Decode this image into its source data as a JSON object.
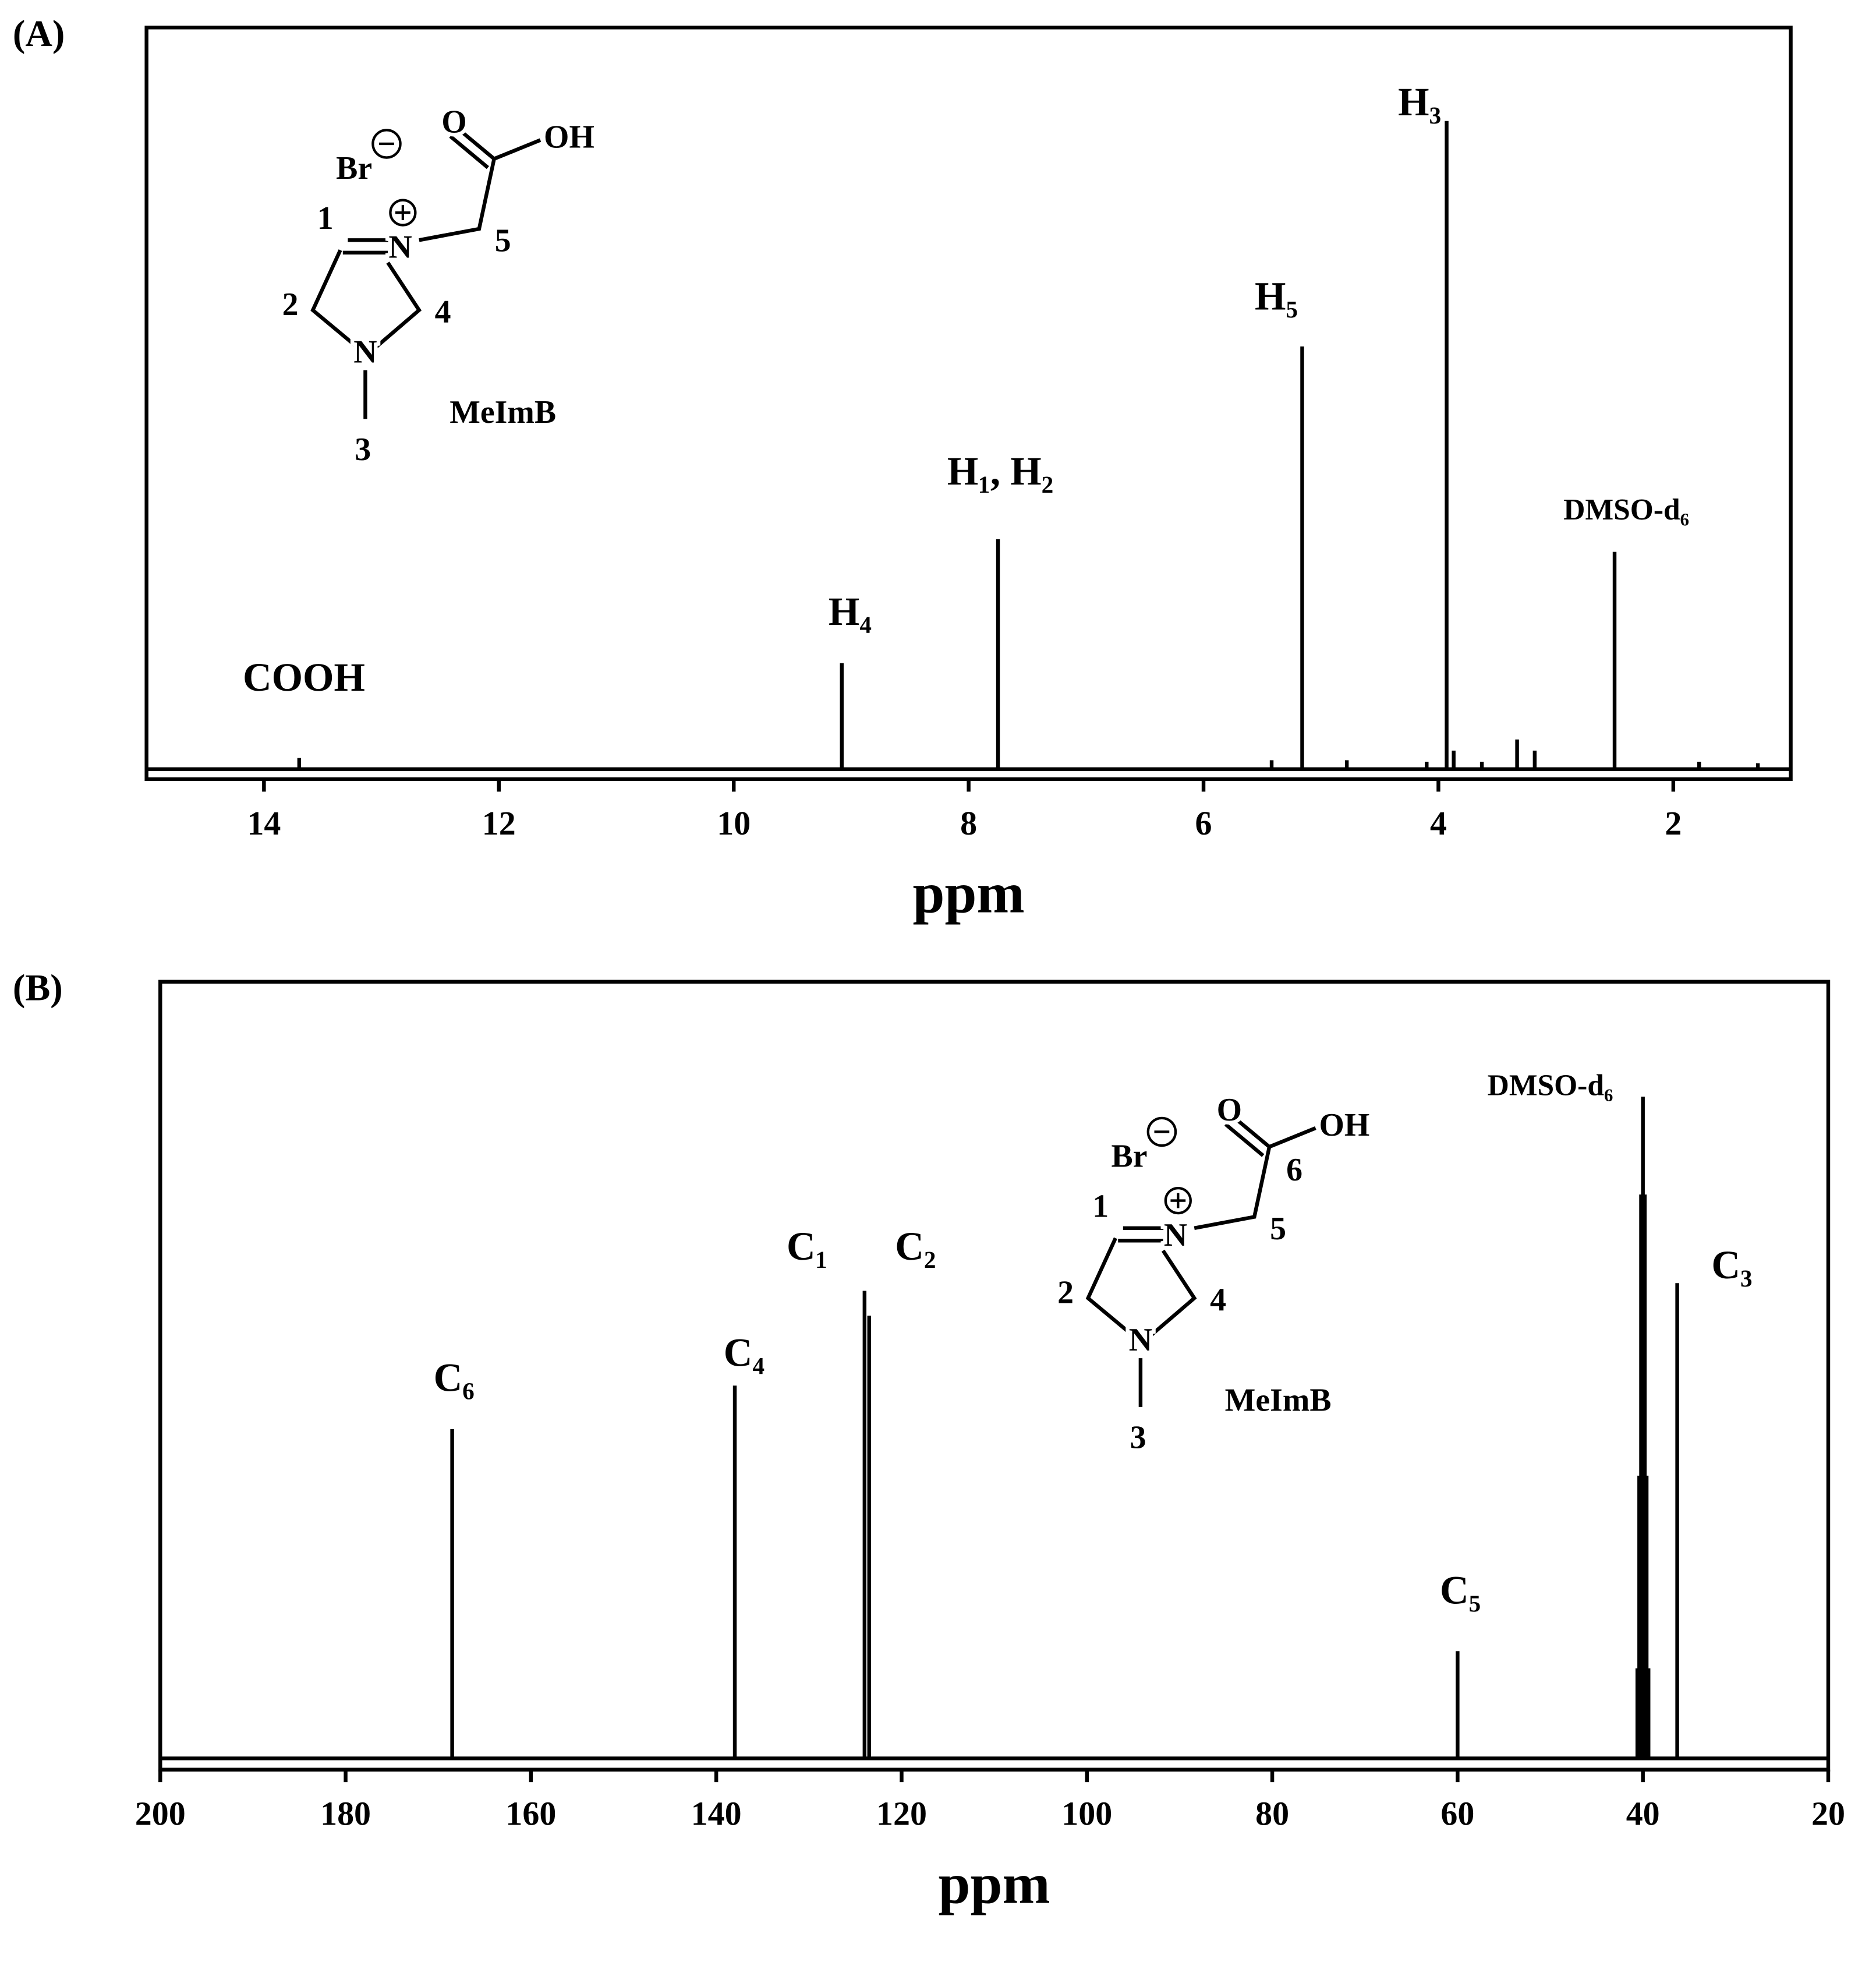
{
  "chart_data": [
    {
      "type": "spectrum",
      "panel": "(A)",
      "xlabel": "ppm",
      "xlim": [
        15,
        1
      ],
      "ylim": [
        0,
        100
      ],
      "xticks": [
        14,
        12,
        10,
        8,
        6,
        4,
        2
      ],
      "color": "#000000",
      "x": [
        13.7,
        9.08,
        7.75,
        5.42,
        5.16,
        4.78,
        4.1,
        3.93,
        3.87,
        3.63,
        3.33,
        3.18,
        2.5,
        1.78,
        1.28
      ],
      "values": [
        1.5,
        14.3,
        31,
        1.2,
        57,
        1.2,
        1,
        87.4,
        2.5,
        1,
        4,
        2.5,
        29.3,
        1,
        0.8
      ],
      "annotations": [
        {
          "text": "COOH",
          "x": 13.66,
          "y": 11.8
        },
        {
          "text": "H₄",
          "x": 9.01,
          "y": 20.7
        },
        {
          "text": "H₁, H₂",
          "x": 7.73,
          "y": 39.6
        },
        {
          "text": "H₅",
          "x": 5.38,
          "y": 63.2
        },
        {
          "text": "H₃",
          "x": 4.16,
          "y": 89.4
        },
        {
          "text": "DMSO-d₆",
          "x": 2.4,
          "y": 34.6
        }
      ],
      "structure_labels": [
        "O",
        "OH",
        "Br",
        "1",
        "N",
        "5",
        "2",
        "4",
        "N",
        "3",
        "MeImB"
      ]
    },
    {
      "type": "spectrum",
      "panel": "(B)",
      "xlabel": "ppm",
      "xlim": [
        200,
        20
      ],
      "ylim": [
        0,
        100
      ],
      "xticks": [
        200,
        180,
        160,
        140,
        120,
        100,
        80,
        60,
        40,
        20
      ],
      "color": "#000000",
      "x": [
        168.5,
        138,
        124,
        123.5,
        60,
        40.6,
        40.4,
        40.2,
        40,
        39.8,
        39.6,
        39.4,
        36.3
      ],
      "values": [
        42.4,
        48,
        60.2,
        57,
        13.8,
        11.6,
        36.4,
        72.6,
        85.2,
        72.6,
        36.4,
        11.6,
        61.2
      ],
      "annotations": [
        {
          "text": "C₆",
          "x": 168.3,
          "y": 48.5
        },
        {
          "text": "C₄",
          "x": 137,
          "y": 51.7
        },
        {
          "text": "C₁",
          "x": 130.2,
          "y": 65.4
        },
        {
          "text": "C₂",
          "x": 118.5,
          "y": 65.4
        },
        {
          "text": "C₅",
          "x": 59.7,
          "y": 21.1
        },
        {
          "text": "DMSO-d₆",
          "x": 50,
          "y": 86.3
        },
        {
          "text": "C₃",
          "x": 30.4,
          "y": 63
        }
      ],
      "structure_labels": [
        "O",
        "OH",
        "Br",
        "1",
        "N",
        "5",
        "2",
        "4",
        "N",
        "3",
        "MeImB",
        "6"
      ]
    }
  ]
}
